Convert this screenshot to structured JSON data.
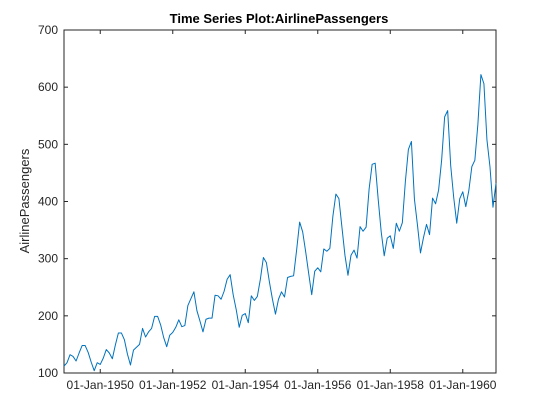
{
  "chart_data": {
    "type": "line",
    "title": "Time Series Plot:AirlinePassengers",
    "xlabel": "",
    "ylabel": "AirlinePassengers",
    "ylim": [
      100,
      700
    ],
    "xlim": [
      "1949-01",
      "1960-12"
    ],
    "grid": false,
    "yticks": [
      100,
      200,
      300,
      400,
      500,
      600,
      700
    ],
    "xticks": [
      {
        "date": "1950-01",
        "label": "01-Jan-1950"
      },
      {
        "date": "1952-01",
        "label": "01-Jan-1952"
      },
      {
        "date": "1954-01",
        "label": "01-Jan-1954"
      },
      {
        "date": "1956-01",
        "label": "01-Jan-1956"
      },
      {
        "date": "1958-01",
        "label": "01-Jan-1958"
      },
      {
        "date": "1960-01",
        "label": "01-Jan-1960"
      }
    ],
    "series": [
      {
        "color": "#0072BD",
        "start": "1949-01",
        "frequency": "monthly",
        "values": [
          112,
          118,
          132,
          129,
          121,
          135,
          148,
          148,
          136,
          119,
          104,
          118,
          115,
          126,
          141,
          135,
          125,
          149,
          170,
          170,
          158,
          133,
          114,
          140,
          145,
          150,
          178,
          163,
          172,
          178,
          199,
          199,
          184,
          162,
          146,
          166,
          171,
          180,
          193,
          181,
          183,
          218,
          230,
          242,
          209,
          191,
          172,
          194,
          196,
          196,
          236,
          235,
          229,
          243,
          264,
          272,
          237,
          211,
          180,
          201,
          204,
          188,
          235,
          227,
          234,
          264,
          302,
          293,
          259,
          229,
          203,
          229,
          242,
          233,
          267,
          269,
          270,
          315,
          364,
          347,
          312,
          274,
          237,
          278,
          284,
          277,
          317,
          313,
          318,
          374,
          413,
          405,
          355,
          306,
          271,
          306,
          315,
          301,
          356,
          348,
          355,
          422,
          465,
          467,
          404,
          347,
          305,
          336,
          340,
          318,
          362,
          348,
          363,
          435,
          491,
          505,
          404,
          359,
          310,
          337,
          360,
          342,
          406,
          396,
          420,
          472,
          548,
          559,
          463,
          407,
          362,
          405,
          417,
          391,
          419,
          461,
          472,
          535,
          622,
          606,
          508,
          461,
          390,
          432
        ]
      }
    ]
  }
}
